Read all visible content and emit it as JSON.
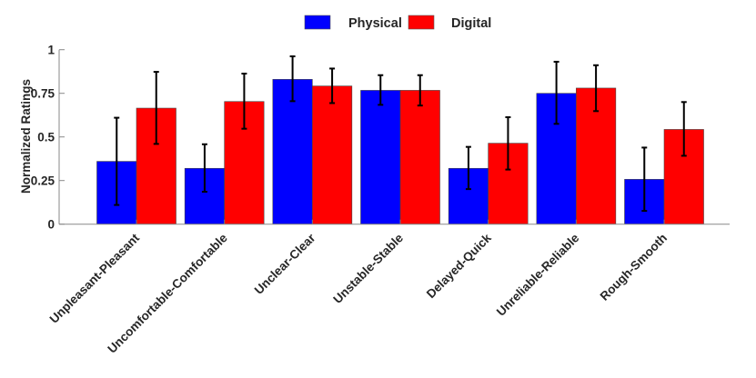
{
  "chart_data": {
    "type": "bar",
    "title": "",
    "xlabel": "",
    "ylabel": "Normalized Ratings",
    "ylim": [
      0,
      1
    ],
    "yticks": [
      0,
      0.25,
      0.5,
      0.75,
      1
    ],
    "ytick_labels": [
      "0",
      "0.25",
      "0.5",
      "0.75",
      "1"
    ],
    "grid": false,
    "legend_position": "top-center",
    "categories": [
      "Unpleasant-Pleasant",
      "Uncomfortable-Comfortable",
      "Unclear-Clear",
      "Unstable-Stable",
      "Delayed-Quick",
      "Unreliable-Reliable",
      "Rough-Smooth"
    ],
    "series": [
      {
        "name": "Physical",
        "color": "#0000FF",
        "values": [
          0.36,
          0.32,
          0.83,
          0.767,
          0.32,
          0.75,
          0.257
        ],
        "err_low": [
          0.11,
          0.186,
          0.705,
          0.684,
          0.201,
          0.575,
          0.076
        ],
        "err_high": [
          0.61,
          0.458,
          0.962,
          0.854,
          0.443,
          0.931,
          0.439
        ]
      },
      {
        "name": "Digital",
        "color": "#FF0000",
        "values": [
          0.665,
          0.703,
          0.792,
          0.767,
          0.464,
          0.78,
          0.543
        ],
        "err_low": [
          0.46,
          0.547,
          0.694,
          0.68,
          0.313,
          0.648,
          0.392
        ],
        "err_high": [
          0.873,
          0.863,
          0.892,
          0.854,
          0.613,
          0.911,
          0.7
        ]
      }
    ]
  }
}
